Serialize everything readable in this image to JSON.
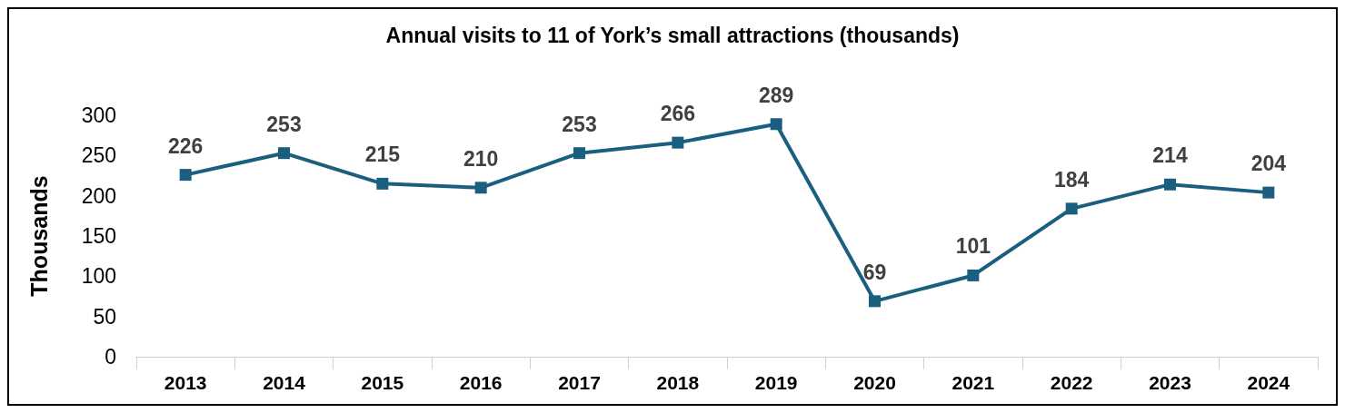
{
  "chart_data": {
    "type": "line",
    "title": "Annual visits to 11 of York’s small attractions (thousands)",
    "ylabel": "Thousands",
    "categories": [
      "2013",
      "2014",
      "2015",
      "2016",
      "2017",
      "2018",
      "2019",
      "2020",
      "2021",
      "2022",
      "2023",
      "2024"
    ],
    "values": [
      226,
      253,
      215,
      210,
      253,
      266,
      289,
      69,
      101,
      184,
      214,
      204
    ],
    "color": "#1b5f80",
    "ylim": [
      0,
      300
    ],
    "yticks": [
      0,
      50,
      100,
      150,
      200,
      250,
      300
    ],
    "grid": false,
    "marker": "square",
    "line_style": "solid",
    "data_labels": true
  }
}
